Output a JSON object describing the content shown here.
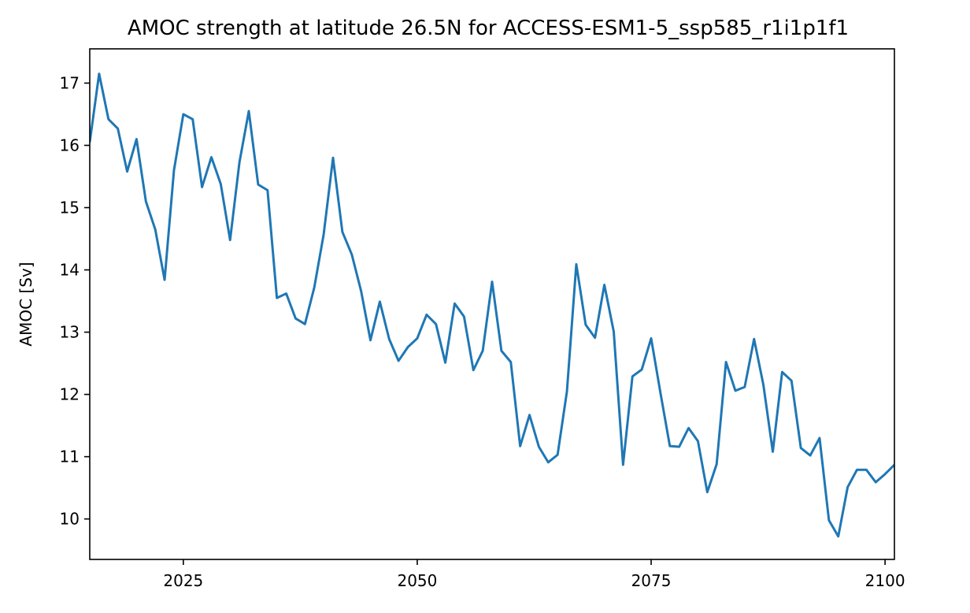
{
  "chart_data": {
    "type": "line",
    "title": "AMOC strength at latitude 26.5N for ACCESS-ESM1-5_ssp585_r1i1p1f1",
    "xlabel": "",
    "ylabel": "AMOC [Sv]",
    "xlim": [
      2015,
      2101
    ],
    "ylim": [
      9.35,
      17.55
    ],
    "xticks": [
      2025,
      2050,
      2075,
      2100
    ],
    "yticks": [
      10,
      11,
      12,
      13,
      14,
      15,
      16,
      17
    ],
    "grid": false,
    "colors": {
      "line": "#1f77b4",
      "axes": "#000000",
      "background": "#ffffff"
    },
    "series": [
      {
        "x": [
          2015,
          2016,
          2017,
          2018,
          2019,
          2020,
          2021,
          2022,
          2023,
          2024,
          2025,
          2026,
          2027,
          2028,
          2029,
          2030,
          2031,
          2032,
          2033,
          2034,
          2035,
          2036,
          2037,
          2038,
          2039,
          2040,
          2041,
          2042,
          2043,
          2044,
          2045,
          2046,
          2047,
          2048,
          2049,
          2050,
          2051,
          2052,
          2053,
          2054,
          2055,
          2056,
          2057,
          2058,
          2059,
          2060,
          2061,
          2062,
          2063,
          2064,
          2065,
          2066,
          2067,
          2068,
          2069,
          2070,
          2071,
          2072,
          2073,
          2074,
          2075,
          2076,
          2077,
          2078,
          2079,
          2080,
          2081,
          2082,
          2083,
          2084,
          2085,
          2086,
          2087,
          2088,
          2089,
          2090,
          2091,
          2092,
          2093,
          2094,
          2095,
          2096,
          2097,
          2098,
          2099,
          2100,
          2101
        ],
        "y": [
          16.05,
          17.15,
          16.42,
          16.27,
          15.58,
          16.1,
          15.1,
          14.65,
          13.84,
          15.6,
          16.5,
          16.42,
          15.33,
          15.81,
          15.38,
          14.48,
          15.73,
          16.55,
          15.37,
          15.28,
          13.55,
          13.62,
          13.22,
          13.13,
          13.72,
          14.57,
          15.8,
          14.61,
          14.25,
          13.66,
          12.87,
          13.49,
          12.89,
          12.54,
          12.76,
          12.9,
          13.28,
          13.13,
          12.51,
          13.46,
          13.25,
          12.39,
          12.7,
          13.81,
          12.7,
          12.52,
          11.17,
          11.67,
          11.16,
          10.91,
          11.03,
          12.05,
          14.09,
          13.12,
          12.91,
          13.76,
          13.01,
          10.87,
          12.29,
          12.4,
          12.9,
          12.02,
          11.17,
          11.16,
          11.46,
          11.25,
          10.43,
          10.88,
          12.52,
          12.06,
          12.12,
          12.89,
          12.15,
          11.08,
          12.36,
          12.22,
          11.14,
          11.02,
          11.3,
          9.98,
          9.72,
          10.51,
          10.79,
          10.79,
          10.59,
          10.72,
          10.87
        ]
      }
    ]
  }
}
